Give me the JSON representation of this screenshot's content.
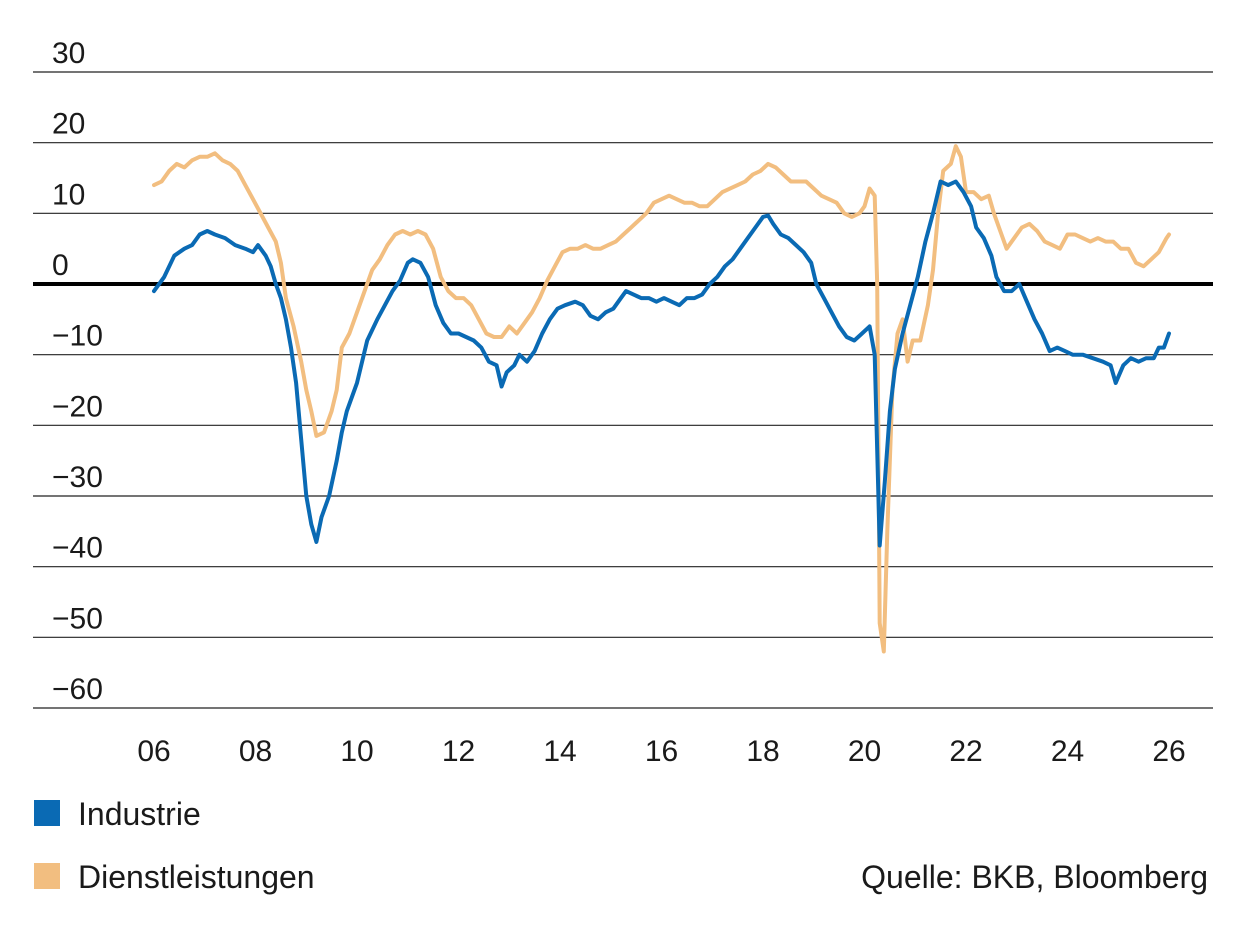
{
  "chart_data": {
    "type": "line",
    "title": "",
    "xlabel": "",
    "ylabel": "",
    "xlim": [
      2006,
      2026
    ],
    "ylim": [
      -60,
      30
    ],
    "y_ticks": [
      30,
      20,
      10,
      0,
      -10,
      -20,
      -30,
      -40,
      -50,
      -60
    ],
    "y_tick_labels": [
      "30",
      "20",
      "10",
      "0",
      "−10",
      "−20",
      "−30",
      "−40",
      "−50",
      "−60"
    ],
    "x_ticks": [
      2006,
      2008,
      2010,
      2012,
      2014,
      2016,
      2018,
      2020,
      2022,
      2024,
      2026
    ],
    "x_tick_labels": [
      "06",
      "08",
      "10",
      "12",
      "14",
      "16",
      "18",
      "20",
      "22",
      "24",
      "26"
    ],
    "grid": "horizontal",
    "zero_line": true,
    "legend_position": "bottom-left",
    "source": "Quelle: BKB, Bloomberg",
    "series": [
      {
        "name": "Industrie",
        "color": "#0a6ab4",
        "points": [
          [
            2006.0,
            -1
          ],
          [
            2006.2,
            1
          ],
          [
            2006.4,
            4
          ],
          [
            2006.6,
            5
          ],
          [
            2006.75,
            5.5
          ],
          [
            2006.9,
            7
          ],
          [
            2007.05,
            7.5
          ],
          [
            2007.2,
            7
          ],
          [
            2007.4,
            6.5
          ],
          [
            2007.6,
            5.5
          ],
          [
            2007.8,
            5
          ],
          [
            2007.95,
            4.5
          ],
          [
            2008.05,
            5.5
          ],
          [
            2008.2,
            4
          ],
          [
            2008.3,
            2.5
          ],
          [
            2008.4,
            0
          ],
          [
            2008.5,
            -2
          ],
          [
            2008.6,
            -5
          ],
          [
            2008.7,
            -9
          ],
          [
            2008.8,
            -14
          ],
          [
            2008.9,
            -22
          ],
          [
            2009.0,
            -30
          ],
          [
            2009.1,
            -34
          ],
          [
            2009.2,
            -36.5
          ],
          [
            2009.3,
            -33
          ],
          [
            2009.45,
            -30
          ],
          [
            2009.6,
            -25
          ],
          [
            2009.7,
            -21
          ],
          [
            2009.8,
            -18
          ],
          [
            2009.9,
            -16
          ],
          [
            2010.0,
            -14
          ],
          [
            2010.1,
            -11
          ],
          [
            2010.2,
            -8
          ],
          [
            2010.4,
            -5
          ],
          [
            2010.55,
            -3
          ],
          [
            2010.7,
            -1
          ],
          [
            2010.85,
            0.5
          ],
          [
            2011.0,
            3
          ],
          [
            2011.1,
            3.5
          ],
          [
            2011.25,
            3
          ],
          [
            2011.4,
            1
          ],
          [
            2011.55,
            -3
          ],
          [
            2011.7,
            -5.5
          ],
          [
            2011.85,
            -7
          ],
          [
            2012.0,
            -7
          ],
          [
            2012.15,
            -7.5
          ],
          [
            2012.3,
            -8
          ],
          [
            2012.45,
            -9
          ],
          [
            2012.6,
            -11
          ],
          [
            2012.75,
            -11.5
          ],
          [
            2012.85,
            -14.5
          ],
          [
            2012.95,
            -12.5
          ],
          [
            2013.1,
            -11.5
          ],
          [
            2013.2,
            -10
          ],
          [
            2013.35,
            -11
          ],
          [
            2013.5,
            -9.5
          ],
          [
            2013.65,
            -7
          ],
          [
            2013.8,
            -5
          ],
          [
            2013.95,
            -3.5
          ],
          [
            2014.1,
            -3
          ],
          [
            2014.3,
            -2.5
          ],
          [
            2014.45,
            -3
          ],
          [
            2014.6,
            -4.5
          ],
          [
            2014.75,
            -5
          ],
          [
            2014.9,
            -4
          ],
          [
            2015.05,
            -3.5
          ],
          [
            2015.2,
            -2
          ],
          [
            2015.3,
            -1
          ],
          [
            2015.45,
            -1.5
          ],
          [
            2015.6,
            -2
          ],
          [
            2015.75,
            -2
          ],
          [
            2015.9,
            -2.5
          ],
          [
            2016.05,
            -2
          ],
          [
            2016.2,
            -2.5
          ],
          [
            2016.35,
            -3
          ],
          [
            2016.5,
            -2
          ],
          [
            2016.65,
            -2
          ],
          [
            2016.8,
            -1.5
          ],
          [
            2016.95,
            0
          ],
          [
            2017.1,
            1
          ],
          [
            2017.25,
            2.5
          ],
          [
            2017.4,
            3.5
          ],
          [
            2017.55,
            5
          ],
          [
            2017.7,
            6.5
          ],
          [
            2017.85,
            8
          ],
          [
            2018.0,
            9.5
          ],
          [
            2018.1,
            9.7
          ],
          [
            2018.2,
            8.5
          ],
          [
            2018.35,
            7
          ],
          [
            2018.5,
            6.5
          ],
          [
            2018.65,
            5.5
          ],
          [
            2018.8,
            4.5
          ],
          [
            2018.95,
            3
          ],
          [
            2019.05,
            0
          ],
          [
            2019.2,
            -2
          ],
          [
            2019.35,
            -4
          ],
          [
            2019.5,
            -6
          ],
          [
            2019.65,
            -7.5
          ],
          [
            2019.8,
            -8
          ],
          [
            2019.95,
            -7
          ],
          [
            2020.1,
            -6
          ],
          [
            2020.2,
            -10
          ],
          [
            2020.3,
            -37
          ],
          [
            2020.4,
            -28
          ],
          [
            2020.5,
            -18
          ],
          [
            2020.6,
            -12
          ],
          [
            2020.75,
            -7
          ],
          [
            2020.9,
            -3
          ],
          [
            2021.05,
            1
          ],
          [
            2021.2,
            6
          ],
          [
            2021.35,
            10
          ],
          [
            2021.5,
            14.5
          ],
          [
            2021.65,
            14
          ],
          [
            2021.8,
            14.5
          ],
          [
            2021.95,
            13
          ],
          [
            2022.1,
            11
          ],
          [
            2022.2,
            8
          ],
          [
            2022.35,
            6.5
          ],
          [
            2022.5,
            4
          ],
          [
            2022.6,
            1
          ],
          [
            2022.75,
            -1
          ],
          [
            2022.9,
            -1
          ],
          [
            2023.05,
            0
          ],
          [
            2023.2,
            -2.5
          ],
          [
            2023.35,
            -5
          ],
          [
            2023.5,
            -7
          ],
          [
            2023.65,
            -9.5
          ],
          [
            2023.8,
            -9
          ],
          [
            2023.95,
            -9.5
          ],
          [
            2024.1,
            -10
          ],
          [
            2024.3,
            -10
          ],
          [
            2024.5,
            -10.5
          ],
          [
            2024.7,
            -11
          ],
          [
            2024.85,
            -11.5
          ],
          [
            2024.95,
            -14
          ],
          [
            2025.1,
            -11.5
          ],
          [
            2025.25,
            -10.5
          ],
          [
            2025.4,
            -11
          ],
          [
            2025.55,
            -10.5
          ],
          [
            2025.7,
            -10.5
          ],
          [
            2025.8,
            -9
          ],
          [
            2025.9,
            -9
          ],
          [
            2026.0,
            -7
          ]
        ]
      },
      {
        "name": "Dienstleistungen",
        "color": "#f2be80",
        "points": [
          [
            2006.0,
            14
          ],
          [
            2006.15,
            14.5
          ],
          [
            2006.3,
            16
          ],
          [
            2006.45,
            17
          ],
          [
            2006.6,
            16.5
          ],
          [
            2006.75,
            17.5
          ],
          [
            2006.9,
            18
          ],
          [
            2007.05,
            18
          ],
          [
            2007.2,
            18.5
          ],
          [
            2007.35,
            17.5
          ],
          [
            2007.5,
            17
          ],
          [
            2007.65,
            16
          ],
          [
            2007.8,
            14
          ],
          [
            2007.95,
            12
          ],
          [
            2008.1,
            10
          ],
          [
            2008.25,
            8
          ],
          [
            2008.4,
            6
          ],
          [
            2008.5,
            3
          ],
          [
            2008.6,
            -2
          ],
          [
            2008.75,
            -6
          ],
          [
            2008.9,
            -11
          ],
          [
            2009.0,
            -15
          ],
          [
            2009.1,
            -18
          ],
          [
            2009.2,
            -21.5
          ],
          [
            2009.35,
            -21
          ],
          [
            2009.5,
            -18
          ],
          [
            2009.6,
            -15
          ],
          [
            2009.7,
            -9
          ],
          [
            2009.85,
            -7
          ],
          [
            2010.0,
            -4
          ],
          [
            2010.15,
            -1
          ],
          [
            2010.3,
            2
          ],
          [
            2010.45,
            3.5
          ],
          [
            2010.6,
            5.5
          ],
          [
            2010.75,
            7
          ],
          [
            2010.9,
            7.5
          ],
          [
            2011.05,
            7
          ],
          [
            2011.2,
            7.5
          ],
          [
            2011.35,
            7
          ],
          [
            2011.5,
            5
          ],
          [
            2011.65,
            1
          ],
          [
            2011.8,
            -1
          ],
          [
            2011.95,
            -2
          ],
          [
            2012.1,
            -2
          ],
          [
            2012.25,
            -3
          ],
          [
            2012.4,
            -5
          ],
          [
            2012.55,
            -7
          ],
          [
            2012.7,
            -7.5
          ],
          [
            2012.85,
            -7.5
          ],
          [
            2013.0,
            -6
          ],
          [
            2013.15,
            -7
          ],
          [
            2013.3,
            -5.5
          ],
          [
            2013.45,
            -4
          ],
          [
            2013.6,
            -2
          ],
          [
            2013.75,
            0.5
          ],
          [
            2013.9,
            2.5
          ],
          [
            2014.05,
            4.5
          ],
          [
            2014.2,
            5
          ],
          [
            2014.35,
            5
          ],
          [
            2014.5,
            5.5
          ],
          [
            2014.65,
            5
          ],
          [
            2014.8,
            5
          ],
          [
            2014.95,
            5.5
          ],
          [
            2015.1,
            6
          ],
          [
            2015.25,
            7
          ],
          [
            2015.4,
            8
          ],
          [
            2015.55,
            9
          ],
          [
            2015.7,
            10
          ],
          [
            2015.85,
            11.5
          ],
          [
            2016.0,
            12
          ],
          [
            2016.15,
            12.5
          ],
          [
            2016.3,
            12
          ],
          [
            2016.45,
            11.5
          ],
          [
            2016.6,
            11.5
          ],
          [
            2016.75,
            11
          ],
          [
            2016.9,
            11
          ],
          [
            2017.05,
            12
          ],
          [
            2017.2,
            13
          ],
          [
            2017.35,
            13.5
          ],
          [
            2017.5,
            14
          ],
          [
            2017.65,
            14.5
          ],
          [
            2017.8,
            15.5
          ],
          [
            2017.95,
            16
          ],
          [
            2018.1,
            17
          ],
          [
            2018.25,
            16.5
          ],
          [
            2018.4,
            15.5
          ],
          [
            2018.55,
            14.5
          ],
          [
            2018.7,
            14.5
          ],
          [
            2018.85,
            14.5
          ],
          [
            2019.0,
            13.5
          ],
          [
            2019.15,
            12.5
          ],
          [
            2019.3,
            12
          ],
          [
            2019.45,
            11.5
          ],
          [
            2019.6,
            10
          ],
          [
            2019.75,
            9.5
          ],
          [
            2019.9,
            10
          ],
          [
            2020.0,
            11
          ],
          [
            2020.1,
            13.5
          ],
          [
            2020.2,
            12.5
          ],
          [
            2020.25,
            0
          ],
          [
            2020.3,
            -48
          ],
          [
            2020.38,
            -52
          ],
          [
            2020.45,
            -35
          ],
          [
            2020.55,
            -15
          ],
          [
            2020.65,
            -7
          ],
          [
            2020.75,
            -5
          ],
          [
            2020.85,
            -11
          ],
          [
            2020.95,
            -8
          ],
          [
            2021.1,
            -8
          ],
          [
            2021.25,
            -3
          ],
          [
            2021.35,
            2
          ],
          [
            2021.45,
            10
          ],
          [
            2021.55,
            16
          ],
          [
            2021.7,
            17
          ],
          [
            2021.8,
            19.5
          ],
          [
            2021.9,
            18
          ],
          [
            2022.0,
            13
          ],
          [
            2022.15,
            13
          ],
          [
            2022.3,
            12
          ],
          [
            2022.45,
            12.5
          ],
          [
            2022.55,
            10
          ],
          [
            2022.7,
            7
          ],
          [
            2022.8,
            5
          ],
          [
            2022.95,
            6.5
          ],
          [
            2023.1,
            8
          ],
          [
            2023.25,
            8.5
          ],
          [
            2023.4,
            7.5
          ],
          [
            2023.55,
            6
          ],
          [
            2023.7,
            5.5
          ],
          [
            2023.85,
            5
          ],
          [
            2024.0,
            7
          ],
          [
            2024.15,
            7
          ],
          [
            2024.3,
            6.5
          ],
          [
            2024.45,
            6
          ],
          [
            2024.6,
            6.5
          ],
          [
            2024.75,
            6
          ],
          [
            2024.9,
            6
          ],
          [
            2025.05,
            5
          ],
          [
            2025.2,
            5
          ],
          [
            2025.35,
            3
          ],
          [
            2025.5,
            2.5
          ],
          [
            2025.65,
            3.5
          ],
          [
            2025.8,
            4.5
          ],
          [
            2025.95,
            6.5
          ],
          [
            2026.0,
            7
          ]
        ]
      }
    ]
  }
}
